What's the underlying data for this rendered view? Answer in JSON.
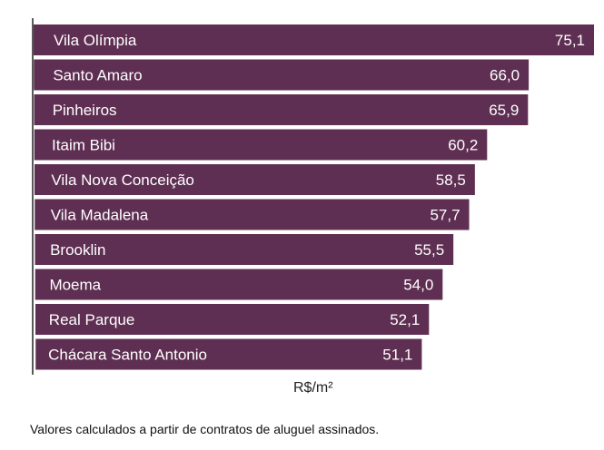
{
  "chart_data": {
    "type": "bar",
    "orientation": "horizontal",
    "categories": [
      "Vila Olímpia",
      "Santo Amaro",
      "Pinheiros",
      "Itaim Bibi",
      "Vila Nova Conceição",
      "Vila Madalena",
      "Brooklin",
      "Moema",
      "Real Parque",
      "Chácara Santo Antonio"
    ],
    "values": [
      75.1,
      66.0,
      65.9,
      60.2,
      58.5,
      57.7,
      55.5,
      54.0,
      52.1,
      51.1
    ],
    "value_labels": [
      "75,1",
      "66,0",
      "65,9",
      "60,2",
      "58,5",
      "57,7",
      "55,5",
      "54,0",
      "52,1",
      "51,1"
    ],
    "xlabel": "R$/m²",
    "grid": false,
    "legend": "none",
    "bar_color": "#5e2f52"
  },
  "footnote": "Valores calculados a partir de contratos de aluguel assinados."
}
